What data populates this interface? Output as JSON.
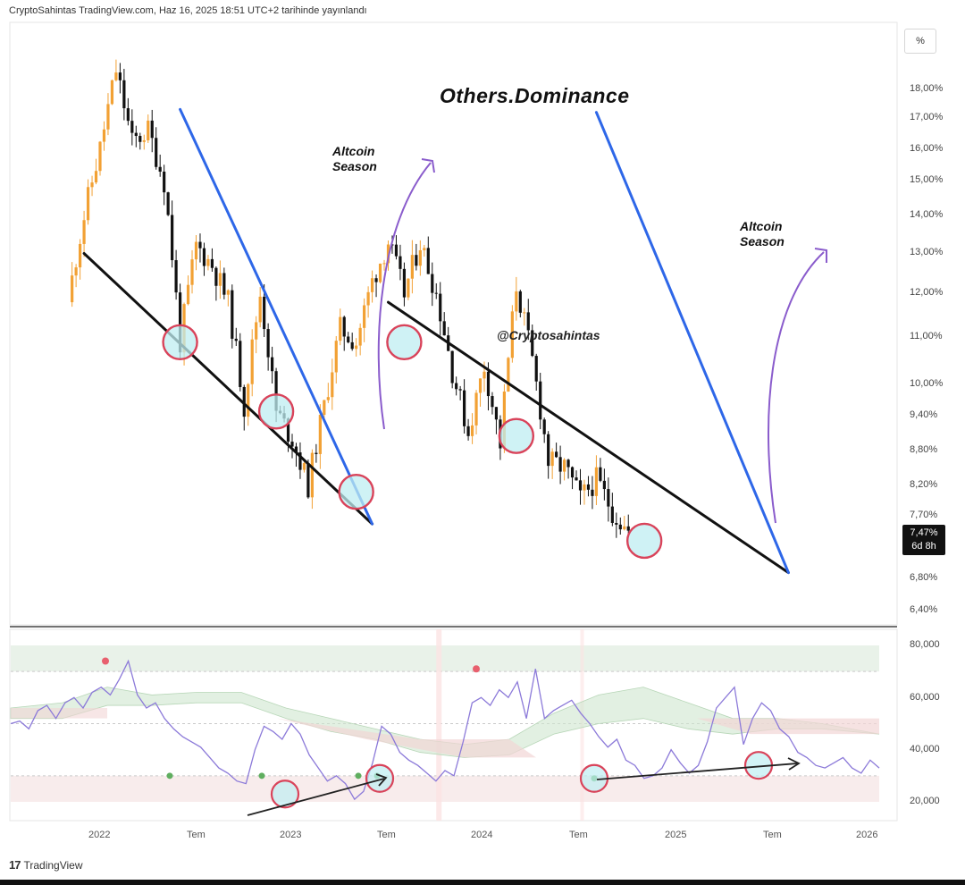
{
  "header": {
    "publish_info": "CryptoSahintas TradingView.com, Haz 16, 2025 18:51 UTC+2 tarihinde yayınlandı"
  },
  "scale_button": {
    "label": "%"
  },
  "title": "Others.Dominance",
  "watermark": "@Cryptosahintas",
  "annotations": {
    "left": {
      "line1": "Altcoin",
      "line2": "Season"
    },
    "right": {
      "line1": "Altcoin",
      "line2": "Season"
    }
  },
  "price_badge": {
    "value": "7,47%",
    "countdown": "6d 8h"
  },
  "footer": {
    "logo": "17",
    "brand": "TradingView"
  },
  "colors": {
    "up_candle": "#f2a134",
    "down_candle": "#111111",
    "trendline_blue": "#2e67e8",
    "trendline_black": "#111111",
    "circle_stroke": "#d9435a",
    "circle_fill": "#bfeef2",
    "arrow_purple": "#8a5ccc",
    "rsi_line": "#8c7ad9",
    "cloud_green": "#cfe6cf",
    "cloud_red": "#f2d6d6"
  },
  "chart_data": [
    {
      "type": "candlestick",
      "title": "Others.Dominance",
      "y_axis": {
        "scale": "log",
        "unit": "%",
        "ticks": [
          "18,00%",
          "17,00%",
          "16,00%",
          "15,00%",
          "14,00%",
          "13,00%",
          "12,00%",
          "11,00%",
          "10,00%",
          "9,40%",
          "8,80%",
          "8,20%",
          "7,70%",
          "6,80%",
          "6,40%"
        ],
        "tick_values": [
          18.0,
          17.0,
          16.0,
          15.0,
          14.0,
          13.0,
          12.0,
          11.0,
          10.0,
          9.4,
          8.8,
          8.2,
          7.7,
          6.8,
          6.4
        ]
      },
      "x_axis": {
        "ticks": [
          "2022",
          "Tem",
          "2023",
          "Tem",
          "2024",
          "Tem",
          "2025",
          "Tem",
          "2026"
        ]
      },
      "last_value": 7.47,
      "close_path": [
        {
          "x": "2021-11",
          "y": 11.8
        },
        {
          "x": "2021-12",
          "y": 14.0
        },
        {
          "x": "2022-01",
          "y": 16.0
        },
        {
          "x": "2022-02",
          "y": 18.7
        },
        {
          "x": "2022-03",
          "y": 16.2
        },
        {
          "x": "2022-04",
          "y": 16.6
        },
        {
          "x": "2022-05",
          "y": 15.0
        },
        {
          "x": "2022-06",
          "y": 10.9
        },
        {
          "x": "2022-07",
          "y": 13.2
        },
        {
          "x": "2022-08",
          "y": 12.7
        },
        {
          "x": "2022-09",
          "y": 11.8
        },
        {
          "x": "2022-10",
          "y": 9.6
        },
        {
          "x": "2022-11",
          "y": 12.0
        },
        {
          "x": "2022-12",
          "y": 9.5
        },
        {
          "x": "2023-01",
          "y": 9.0
        },
        {
          "x": "2023-02",
          "y": 8.2
        },
        {
          "x": "2023-03",
          "y": 9.6
        },
        {
          "x": "2023-04",
          "y": 11.2
        },
        {
          "x": "2023-05",
          "y": 10.9
        },
        {
          "x": "2023-06",
          "y": 12.3
        },
        {
          "x": "2023-07",
          "y": 13.3
        },
        {
          "x": "2023-08",
          "y": 12.0
        },
        {
          "x": "2023-09",
          "y": 13.3
        },
        {
          "x": "2023-10",
          "y": 12.0
        },
        {
          "x": "2023-11",
          "y": 10.3
        },
        {
          "x": "2023-12",
          "y": 9.1
        },
        {
          "x": "2024-01",
          "y": 10.4
        },
        {
          "x": "2024-02",
          "y": 8.9
        },
        {
          "x": "2024-03",
          "y": 12.2
        },
        {
          "x": "2024-04",
          "y": 10.5
        },
        {
          "x": "2024-05",
          "y": 8.6
        },
        {
          "x": "2024-06",
          "y": 8.5
        },
        {
          "x": "2024-07",
          "y": 8.0
        },
        {
          "x": "2024-08",
          "y": 8.3
        },
        {
          "x": "2024-09",
          "y": 7.8
        },
        {
          "x": "2024-10",
          "y": 7.47
        }
      ],
      "trendlines": [
        {
          "name": "support",
          "color": "black",
          "from": {
            "x": "2021-12",
            "y": 13.0
          },
          "to": {
            "x": "2023-06",
            "y": 7.6
          }
        },
        {
          "name": "resistance",
          "color": "blue",
          "from": {
            "x": "2022-06",
            "y": 17.3
          },
          "to": {
            "x": "2023-06",
            "y": 7.6
          }
        },
        {
          "name": "support",
          "color": "black",
          "from": {
            "x": "2023-07",
            "y": 11.8
          },
          "to": {
            "x": "2025-08",
            "y": 6.9
          }
        },
        {
          "name": "resistance",
          "color": "blue",
          "from": {
            "x": "2024-08",
            "y": 17.2
          },
          "to": {
            "x": "2025-08",
            "y": 6.9
          }
        }
      ]
    },
    {
      "type": "line",
      "panel": "oscillator",
      "y_axis": {
        "ticks": [
          "80,000",
          "60,000",
          "40,000",
          "20,000"
        ],
        "tick_values": [
          80,
          60,
          40,
          20
        ]
      },
      "reference_lines": [
        70,
        50,
        30
      ],
      "series_values": [
        50,
        51,
        48,
        55,
        57,
        52,
        58,
        60,
        56,
        62,
        64,
        61,
        67,
        74,
        61,
        56,
        58,
        52,
        48,
        45,
        43,
        41,
        37,
        33,
        31,
        28,
        27,
        40,
        49,
        47,
        44,
        50,
        46,
        38,
        33,
        28,
        30,
        27,
        21,
        24,
        35,
        49,
        46,
        39,
        36,
        34,
        31,
        28,
        32,
        30,
        43,
        58,
        60,
        57,
        63,
        60,
        66,
        52,
        71,
        52,
        55,
        57,
        59,
        54,
        50,
        45,
        41,
        44,
        36,
        34,
        29,
        30,
        33,
        40,
        35,
        31,
        34,
        43,
        56,
        60,
        64,
        42,
        52,
        58,
        55,
        48,
        45,
        39,
        37,
        34,
        33,
        35,
        37,
        33,
        31,
        36,
        33
      ]
    }
  ]
}
